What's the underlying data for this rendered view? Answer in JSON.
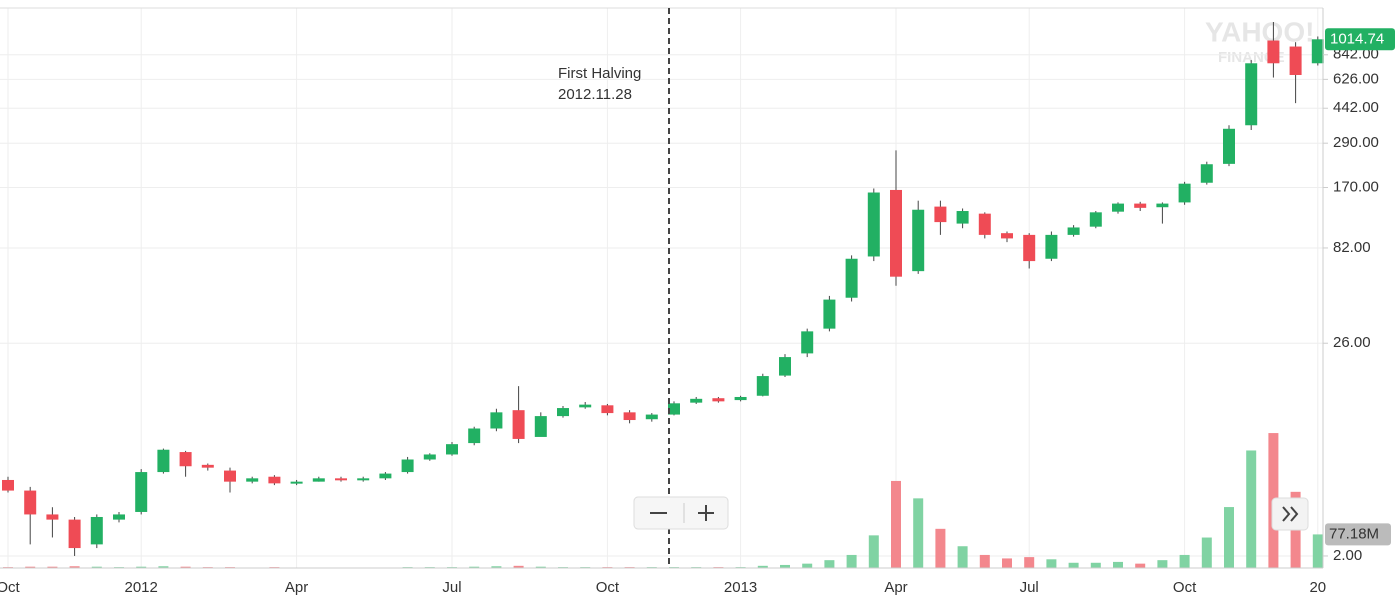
{
  "chart_data": {
    "type": "candlestick",
    "categories": [
      "Oct",
      null,
      null,
      null,
      null,
      null,
      "2012",
      null,
      null,
      null,
      null,
      null,
      null,
      "Apr",
      null,
      null,
      null,
      null,
      null,
      null,
      "Jul",
      null,
      null,
      null,
      null,
      null,
      null,
      "Oct",
      null,
      null,
      null,
      null,
      null,
      "2013",
      null,
      null,
      null,
      null,
      null,
      null,
      "Apr",
      null,
      null,
      null,
      null,
      null,
      "Jul",
      null,
      null,
      null,
      null,
      null,
      null,
      "Oct",
      null,
      null,
      null,
      null,
      null,
      "20"
    ],
    "open": [
      5.0,
      4.4,
      3.3,
      3.1,
      2.3,
      3.1,
      3.4,
      5.5,
      7.0,
      6.0,
      5.6,
      4.9,
      5.2,
      4.8,
      4.9,
      5.1,
      5.0,
      5.1,
      5.5,
      6.4,
      6.8,
      7.8,
      9.3,
      11.6,
      8.4,
      10.8,
      12.0,
      12.3,
      11.3,
      10.4,
      11.0,
      12.7,
      13.4,
      13.1,
      13.8,
      17.6,
      23,
      31,
      45,
      74,
      165,
      62,
      135,
      110,
      124,
      98,
      96,
      72,
      96,
      106,
      127,
      140,
      134,
      142,
      180,
      226,
      360,
      1000,
      930,
      760
    ],
    "high": [
      5.2,
      4.6,
      3.6,
      3.2,
      3.3,
      3.4,
      5.7,
      7.3,
      7.1,
      6.1,
      5.8,
      5.2,
      5.3,
      5.0,
      5.2,
      5.2,
      5.2,
      5.5,
      6.6,
      6.9,
      7.9,
      9.5,
      11.8,
      15.5,
      11.3,
      12.2,
      12.8,
      12.5,
      11.6,
      11.2,
      12.9,
      13.6,
      13.6,
      13.8,
      18,
      22.8,
      31,
      46,
      75,
      168,
      266,
      145,
      145,
      132,
      126,
      100,
      98,
      100,
      108,
      128,
      142,
      143,
      142,
      182,
      232,
      360,
      790,
      1250,
      980,
      1050
    ],
    "low": [
      4.3,
      2.3,
      2.5,
      2.0,
      2.2,
      3.0,
      3.3,
      5.4,
      5.2,
      5.6,
      4.3,
      4.8,
      4.7,
      4.7,
      4.9,
      4.9,
      4.9,
      5.0,
      5.4,
      6.3,
      6.7,
      7.6,
      9.0,
      7.8,
      8.5,
      10.6,
      11.8,
      10.9,
      9.9,
      10.1,
      10.9,
      12.5,
      12.7,
      12.9,
      13.7,
      17.3,
      22,
      30,
      43,
      70,
      52,
      60,
      96,
      104,
      92,
      88,
      64,
      70,
      94,
      104,
      124,
      128,
      110,
      138,
      176,
      220,
      340,
      640,
      470,
      740
    ],
    "close": [
      4.4,
      3.3,
      3.1,
      2.2,
      3.2,
      3.3,
      5.5,
      7.2,
      5.9,
      5.8,
      4.9,
      5.1,
      4.8,
      4.9,
      5.1,
      5.0,
      5.1,
      5.4,
      6.4,
      6.8,
      7.7,
      9.3,
      11.3,
      8.2,
      10.8,
      11.9,
      12.4,
      11.2,
      10.3,
      11.0,
      12.6,
      13.3,
      12.9,
      13.6,
      17.5,
      22,
      30,
      44,
      72,
      160,
      58,
      130,
      112,
      128,
      96,
      92,
      70,
      96,
      105,
      126,
      140,
      133,
      140,
      178,
      225,
      345,
      760,
      760,
      660,
      1014.74
    ],
    "volume": [
      2000000,
      3000000,
      3000000,
      4000000,
      3000000,
      2000000,
      3000000,
      4000000,
      3000000,
      2000000,
      2000000,
      1000000,
      2000000,
      1000000,
      1000000,
      1000000,
      1000000,
      1000000,
      2000000,
      2000000,
      2000000,
      3000000,
      4000000,
      5000000,
      3000000,
      2000000,
      2000000,
      2000000,
      2000000,
      2000000,
      2000000,
      2000000,
      2000000,
      2000000,
      5000000,
      7000000,
      10000000,
      18000000,
      30000000,
      75000000,
      200000000,
      160000000,
      90000000,
      50000000,
      30000000,
      22000000,
      25000000,
      20000000,
      12000000,
      12000000,
      14000000,
      10000000,
      18000000,
      30000000,
      70000000,
      140000000,
      270000000,
      310000000,
      175000000,
      77180000
    ],
    "volume_tag": "77.18M",
    "log_scale": true,
    "ylim": [
      1.73,
      1480
    ],
    "yticks": [
      {
        "value": 2,
        "label": "2.00"
      },
      {
        "value": 26,
        "label": "26.00"
      },
      {
        "value": 82,
        "label": "82.00"
      },
      {
        "value": 170,
        "label": "170.00"
      },
      {
        "value": 290,
        "label": "290.00"
      },
      {
        "value": 442,
        "label": "442.00"
      },
      {
        "value": 626,
        "label": "626.00"
      },
      {
        "value": 842,
        "label": "842.00"
      }
    ],
    "volume_lim": [
      0,
      340000000
    ],
    "grid": true,
    "up_color": "#22b063",
    "down_color": "#ef4b55",
    "volume_up_color": "#80d3a3",
    "volume_down_color": "#f3878d",
    "annotation": {
      "title": "First Halving",
      "date": "2012.11.28"
    },
    "watermark": [
      "YAHOO!",
      "FINANCE"
    ]
  }
}
